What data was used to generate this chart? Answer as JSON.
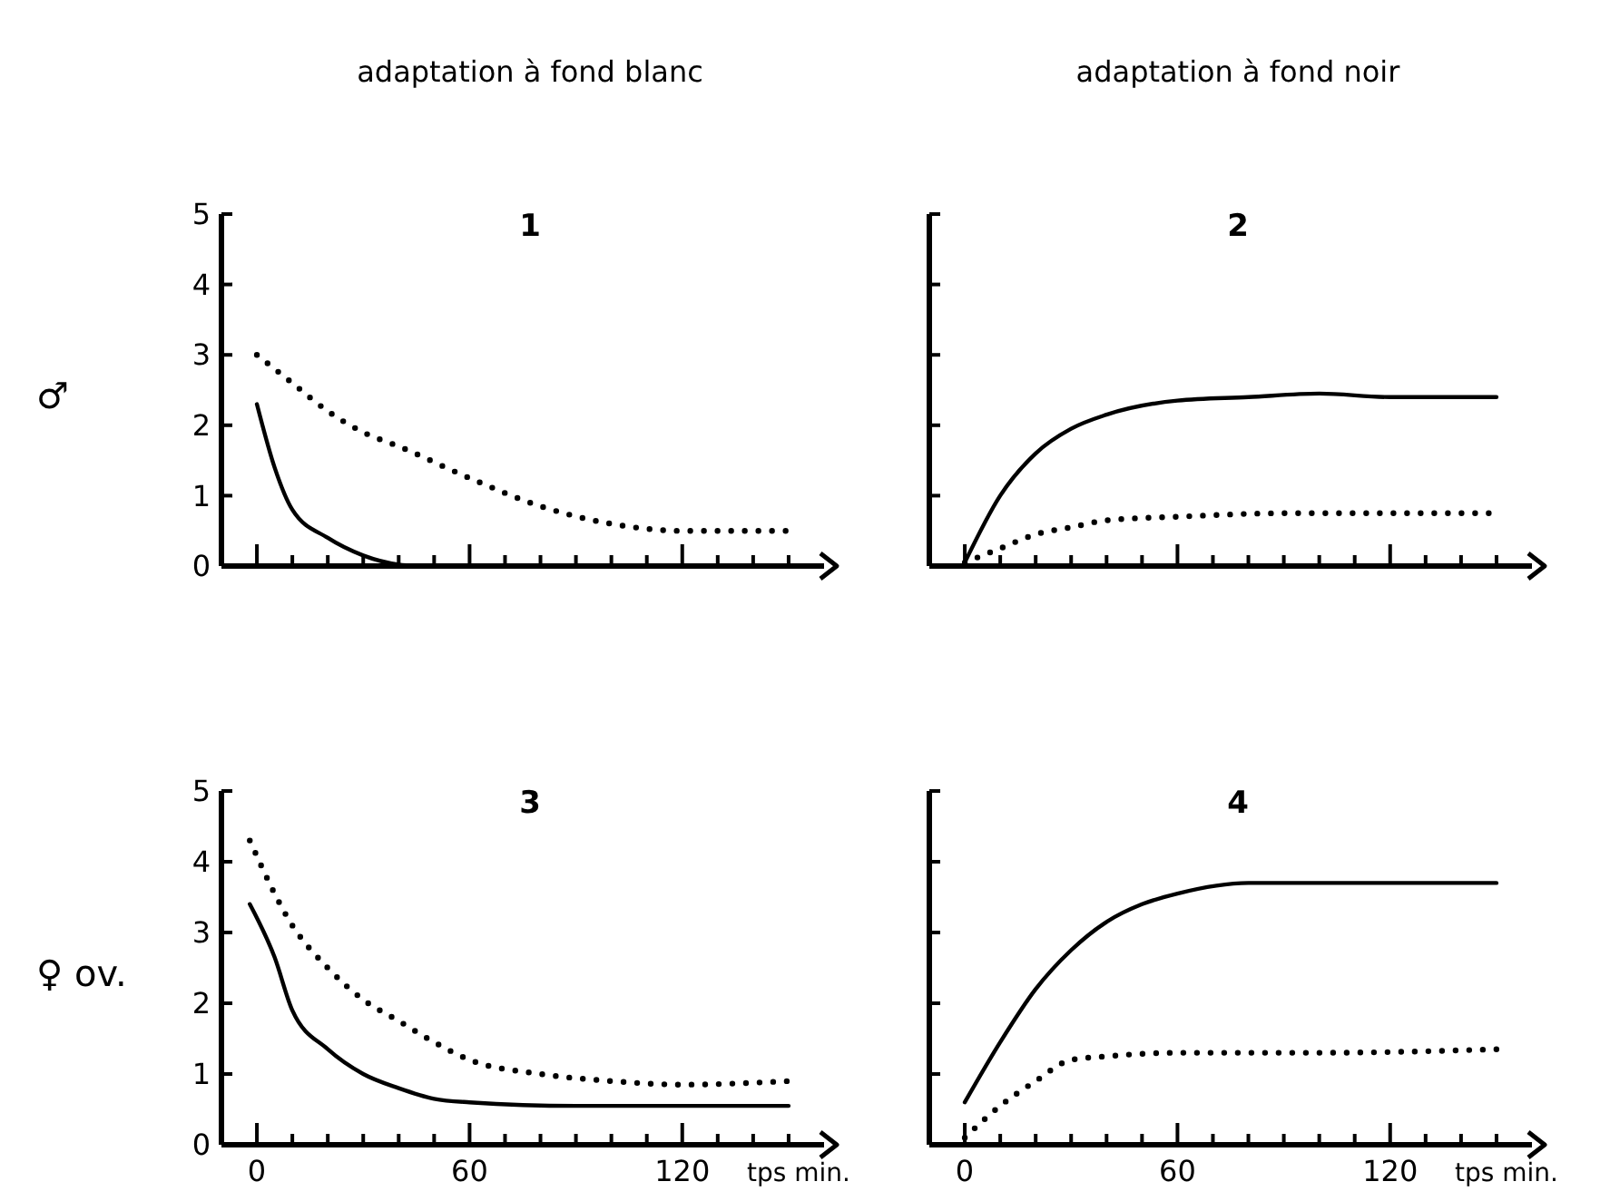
{
  "chart_data": [
    {
      "type": "line",
      "title": "1",
      "subtitle": "adaptation à fond blanc",
      "ylabel": "♂",
      "xlim": [
        -10,
        160
      ],
      "ylim": [
        0,
        5
      ],
      "xticks": [
        0,
        {
          "value": 10,
          "label": null
        },
        {
          "value": 20,
          "label": null
        },
        {
          "value": 30,
          "label": null
        },
        {
          "value": 40,
          "label": null
        },
        {
          "value": 50,
          "label": null
        },
        60,
        {
          "value": 70,
          "label": null
        },
        {
          "value": 80,
          "label": null
        },
        {
          "value": 90,
          "label": null
        },
        {
          "value": 100,
          "label": null
        },
        {
          "value": 110,
          "label": null
        },
        120,
        {
          "value": 130,
          "label": null
        },
        {
          "value": 140,
          "label": null
        },
        {
          "value": 150,
          "label": null
        }
      ],
      "yticks": [
        0,
        1,
        2,
        3,
        4,
        5
      ],
      "tick_labels": "y",
      "marker": "none",
      "series": [
        {
          "color": "#000000",
          "line_style": "solid",
          "x": [
            0,
            5,
            10,
            20,
            30,
            40,
            45
          ],
          "values": [
            2.3,
            1.4,
            0.8,
            0.4,
            0.15,
            0.02,
            0
          ]
        },
        {
          "color": "#000000",
          "line_style": "dotted",
          "x": [
            0,
            10,
            20,
            30,
            40,
            60,
            80,
            100,
            120,
            150
          ],
          "values": [
            3.0,
            2.6,
            2.2,
            1.9,
            1.7,
            1.25,
            0.85,
            0.6,
            0.5,
            0.5
          ]
        }
      ]
    },
    {
      "type": "line",
      "title": "2",
      "subtitle": "adaptation à fond noir",
      "xlim": [
        -10,
        160
      ],
      "ylim": [
        0,
        5
      ],
      "xticks": [
        0,
        {
          "value": 10,
          "label": null
        },
        {
          "value": 20,
          "label": null
        },
        {
          "value": 30,
          "label": null
        },
        {
          "value": 40,
          "label": null
        },
        {
          "value": 50,
          "label": null
        },
        60,
        {
          "value": 70,
          "label": null
        },
        {
          "value": 80,
          "label": null
        },
        {
          "value": 90,
          "label": null
        },
        {
          "value": 100,
          "label": null
        },
        {
          "value": 110,
          "label": null
        },
        120,
        {
          "value": 130,
          "label": null
        },
        {
          "value": 140,
          "label": null
        },
        {
          "value": 150,
          "label": null
        }
      ],
      "yticks": [
        0,
        1,
        2,
        3,
        4,
        5
      ],
      "tick_labels": false,
      "marker": "none",
      "series": [
        {
          "color": "#000000",
          "line_style": "solid",
          "x": [
            0,
            10,
            20,
            30,
            40,
            60,
            80,
            100,
            120,
            150
          ],
          "values": [
            0.05,
            1.0,
            1.6,
            1.95,
            2.15,
            2.35,
            2.4,
            2.45,
            2.4,
            2.4
          ]
        },
        {
          "color": "#000000",
          "line_style": "dotted",
          "x": [
            0,
            10,
            20,
            30,
            40,
            60,
            90,
            120,
            150
          ],
          "values": [
            0.05,
            0.25,
            0.45,
            0.55,
            0.65,
            0.7,
            0.75,
            0.75,
            0.75
          ]
        }
      ]
    },
    {
      "type": "line",
      "title": "3",
      "ylabel": "♀ ov.",
      "xlabel": "tps min.",
      "xlim": [
        -10,
        160
      ],
      "ylim": [
        0,
        5
      ],
      "xticks": [
        0,
        {
          "value": 10,
          "label": null
        },
        {
          "value": 20,
          "label": null
        },
        {
          "value": 30,
          "label": null
        },
        {
          "value": 40,
          "label": null
        },
        {
          "value": 50,
          "label": null
        },
        60,
        {
          "value": 70,
          "label": null
        },
        {
          "value": 80,
          "label": null
        },
        {
          "value": 90,
          "label": null
        },
        {
          "value": 100,
          "label": null
        },
        {
          "value": 110,
          "label": null
        },
        120,
        {
          "value": 130,
          "label": null
        },
        {
          "value": 140,
          "label": null
        },
        {
          "value": 150,
          "label": null
        }
      ],
      "yticks": [
        0,
        1,
        2,
        3,
        4,
        5
      ],
      "marker": "none",
      "series": [
        {
          "color": "#000000",
          "line_style": "solid",
          "x": [
            -2,
            5,
            10,
            20,
            30,
            40,
            50,
            60,
            90,
            150
          ],
          "values": [
            3.4,
            2.65,
            1.9,
            1.35,
            1.0,
            0.8,
            0.65,
            0.6,
            0.55,
            0.55
          ]
        },
        {
          "color": "#000000",
          "line_style": "dotted",
          "x": [
            -2,
            10,
            20,
            30,
            40,
            50,
            60,
            80,
            100,
            120,
            150
          ],
          "values": [
            4.3,
            3.1,
            2.5,
            2.05,
            1.75,
            1.45,
            1.2,
            1.0,
            0.9,
            0.85,
            0.9
          ]
        }
      ]
    },
    {
      "type": "line",
      "title": "4",
      "xlabel": "tps min.",
      "xlim": [
        -10,
        160
      ],
      "ylim": [
        0,
        5
      ],
      "xticks": [
        0,
        {
          "value": 10,
          "label": null
        },
        {
          "value": 20,
          "label": null
        },
        {
          "value": 30,
          "label": null
        },
        {
          "value": 40,
          "label": null
        },
        {
          "value": 50,
          "label": null
        },
        60,
        {
          "value": 70,
          "label": null
        },
        {
          "value": 80,
          "label": null
        },
        {
          "value": 90,
          "label": null
        },
        {
          "value": 100,
          "label": null
        },
        {
          "value": 110,
          "label": null
        },
        120,
        {
          "value": 130,
          "label": null
        },
        {
          "value": 140,
          "label": null
        },
        {
          "value": 150,
          "label": null
        }
      ],
      "yticks": [
        0,
        1,
        2,
        3,
        4,
        5
      ],
      "tick_labels": "x",
      "marker": "none",
      "series": [
        {
          "color": "#000000",
          "line_style": "solid",
          "x": [
            0,
            10,
            20,
            30,
            40,
            50,
            60,
            80,
            100,
            150
          ],
          "values": [
            0.6,
            1.45,
            2.2,
            2.75,
            3.15,
            3.4,
            3.55,
            3.7,
            3.7,
            3.7
          ]
        },
        {
          "color": "#000000",
          "line_style": "dotted",
          "x": [
            0,
            10,
            20,
            30,
            40,
            60,
            100,
            150
          ],
          "values": [
            0.1,
            0.55,
            0.9,
            1.2,
            1.25,
            1.3,
            1.3,
            1.35
          ]
        }
      ]
    }
  ]
}
